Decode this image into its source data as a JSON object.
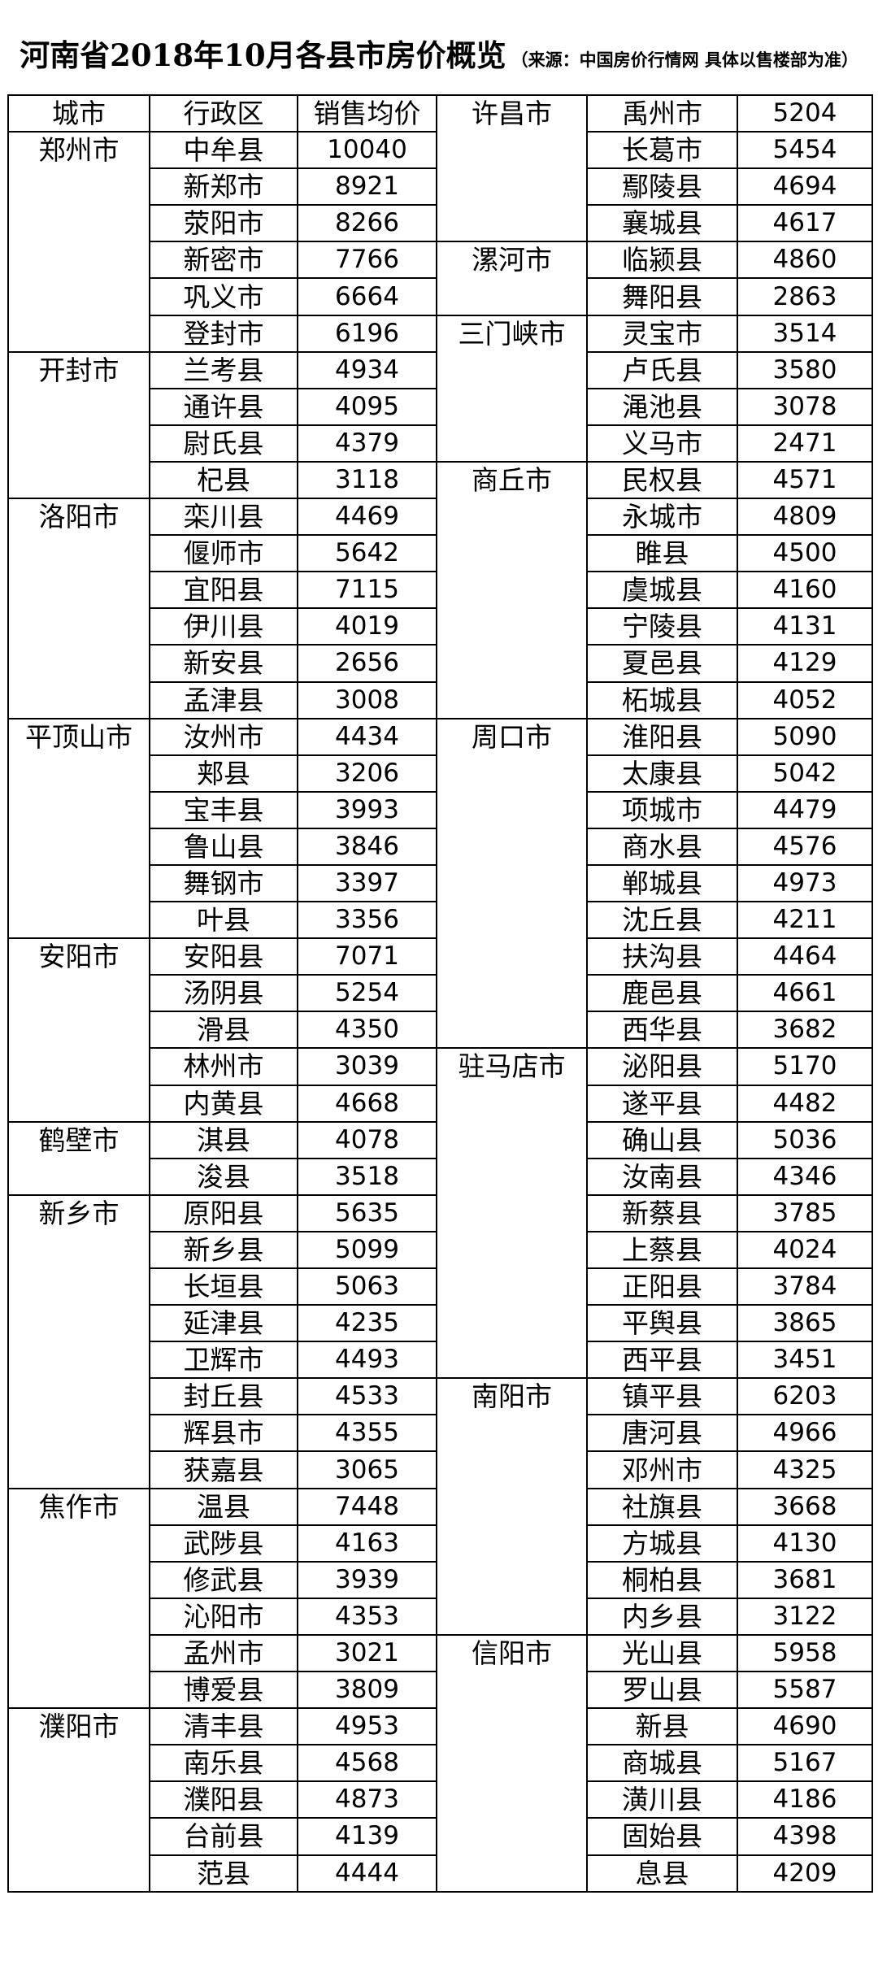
{
  "header": {
    "title": "河南省2018年10月各县市房价概览",
    "note": "（来源：中国房价行情网  具体以售楼部为准）"
  },
  "table": {
    "columns": [
      "城市",
      "行政区",
      "销售均价"
    ],
    "left": [
      {
        "city": "郑州市",
        "districts": [
          [
            "中牟县",
            10040
          ],
          [
            "新郑市",
            8921
          ],
          [
            "荥阳市",
            8266
          ],
          [
            "新密市",
            7766
          ],
          [
            "巩义市",
            6664
          ],
          [
            "登封市",
            6196
          ]
        ]
      },
      {
        "city": "开封市",
        "districts": [
          [
            "兰考县",
            4934
          ],
          [
            "通许县",
            4095
          ],
          [
            "尉氏县",
            4379
          ],
          [
            "杞县",
            3118
          ]
        ]
      },
      {
        "city": "洛阳市",
        "districts": [
          [
            "栾川县",
            4469
          ],
          [
            "偃师市",
            5642
          ],
          [
            "宜阳县",
            7115
          ],
          [
            "伊川县",
            4019
          ],
          [
            "新安县",
            2656
          ],
          [
            "孟津县",
            3008
          ]
        ]
      },
      {
        "city": "平顶山市",
        "districts": [
          [
            "汝州市",
            4434
          ],
          [
            "郏县",
            3206
          ],
          [
            "宝丰县",
            3993
          ],
          [
            "鲁山县",
            3846
          ],
          [
            "舞钢市",
            3397
          ],
          [
            "叶县",
            3356
          ]
        ]
      },
      {
        "city": "安阳市",
        "districts": [
          [
            "安阳县",
            7071
          ],
          [
            "汤阴县",
            5254
          ],
          [
            "滑县",
            4350
          ],
          [
            "林州市",
            3039
          ],
          [
            "内黄县",
            4668
          ]
        ]
      },
      {
        "city": "鹤壁市",
        "districts": [
          [
            "淇县",
            4078
          ],
          [
            "浚县",
            3518
          ]
        ]
      },
      {
        "city": "新乡市",
        "districts": [
          [
            "原阳县",
            5635
          ],
          [
            "新乡县",
            5099
          ],
          [
            "长垣县",
            5063
          ],
          [
            "延津县",
            4235
          ],
          [
            "卫辉市",
            4493
          ],
          [
            "封丘县",
            4533
          ],
          [
            "辉县市",
            4355
          ],
          [
            "获嘉县",
            3065
          ]
        ]
      },
      {
        "city": "焦作市",
        "districts": [
          [
            "温县",
            7448
          ],
          [
            "武陟县",
            4163
          ],
          [
            "修武县",
            3939
          ],
          [
            "沁阳市",
            4353
          ],
          [
            "孟州市",
            3021
          ],
          [
            "博爱县",
            3809
          ]
        ]
      },
      {
        "city": "濮阳市",
        "districts": [
          [
            "清丰县",
            4953
          ],
          [
            "南乐县",
            4568
          ],
          [
            "濮阳县",
            4873
          ],
          [
            "台前县",
            4139
          ],
          [
            "范县",
            4444
          ]
        ]
      }
    ],
    "right": [
      {
        "city": "许昌市",
        "districts": [
          [
            "禹州市",
            5204
          ],
          [
            "长葛市",
            5454
          ],
          [
            "鄢陵县",
            4694
          ],
          [
            "襄城县",
            4617
          ]
        ]
      },
      {
        "city": "漯河市",
        "districts": [
          [
            "临颍县",
            4860
          ],
          [
            "舞阳县",
            2863
          ]
        ]
      },
      {
        "city": "三门峡市",
        "districts": [
          [
            "灵宝市",
            3514
          ],
          [
            "卢氏县",
            3580
          ],
          [
            "渑池县",
            3078
          ],
          [
            "义马市",
            2471
          ]
        ]
      },
      {
        "city": "商丘市",
        "districts": [
          [
            "民权县",
            4571
          ],
          [
            "永城市",
            4809
          ],
          [
            "睢县",
            4500
          ],
          [
            "虞城县",
            4160
          ],
          [
            "宁陵县",
            4131
          ],
          [
            "夏邑县",
            4129
          ],
          [
            "柘城县",
            4052
          ]
        ]
      },
      {
        "city": "周口市",
        "districts": [
          [
            "淮阳县",
            5090
          ],
          [
            "太康县",
            5042
          ],
          [
            "项城市",
            4479
          ],
          [
            "商水县",
            4576
          ],
          [
            "郸城县",
            4973
          ],
          [
            "沈丘县",
            4211
          ],
          [
            "扶沟县",
            4464
          ],
          [
            "鹿邑县",
            4661
          ],
          [
            "西华县",
            3682
          ]
        ]
      },
      {
        "city": "驻马店市",
        "districts": [
          [
            "泌阳县",
            5170
          ],
          [
            "遂平县",
            4482
          ],
          [
            "确山县",
            5036
          ],
          [
            "汝南县",
            4346
          ],
          [
            "新蔡县",
            3785
          ],
          [
            "上蔡县",
            4024
          ],
          [
            "正阳县",
            3784
          ],
          [
            "平舆县",
            3865
          ],
          [
            "西平县",
            3451
          ]
        ]
      },
      {
        "city": "南阳市",
        "districts": [
          [
            "镇平县",
            6203
          ],
          [
            "唐河县",
            4966
          ],
          [
            "邓州市",
            4325
          ],
          [
            "社旗县",
            3668
          ],
          [
            "方城县",
            4130
          ],
          [
            "桐柏县",
            3681
          ],
          [
            "内乡县",
            3122
          ]
        ]
      },
      {
        "city": "信阳市",
        "districts": [
          [
            "光山县",
            5958
          ],
          [
            "罗山县",
            5587
          ],
          [
            "新县",
            4690
          ],
          [
            "商城县",
            5167
          ],
          [
            "潢川县",
            4186
          ],
          [
            "固始县",
            4398
          ],
          [
            "息县",
            4209
          ]
        ]
      }
    ]
  }
}
